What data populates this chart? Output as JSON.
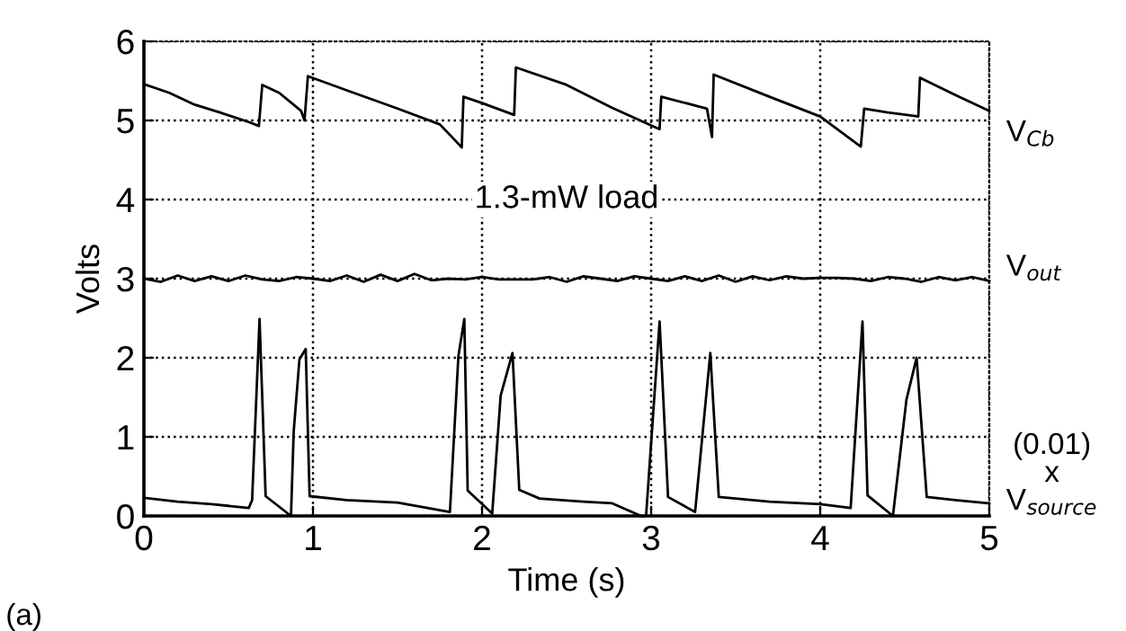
{
  "chart_data": {
    "type": "line",
    "xlabel": "Time (s)",
    "ylabel": "Volts",
    "xlim": [
      0,
      5
    ],
    "ylim": [
      0,
      6
    ],
    "xticks": [
      0,
      1,
      2,
      3,
      4,
      5
    ],
    "yticks": [
      0,
      1,
      2,
      3,
      4,
      5,
      6
    ],
    "grid": true,
    "marker": "none",
    "line_style": "solid",
    "annotations": [
      "1.3-mW load",
      "(a)"
    ],
    "series": [
      {
        "name": "V$_{Cb}$",
        "color": "#000000",
        "x": [
          0,
          0.15,
          0.3,
          0.45,
          0.62,
          0.68,
          0.7,
          0.8,
          0.93,
          0.95,
          0.97,
          1.2,
          1.5,
          1.75,
          1.88,
          1.89,
          2.0,
          2.19,
          2.2,
          2.5,
          2.77,
          3.05,
          3.06,
          3.33,
          3.36,
          3.37,
          3.7,
          4.0,
          4.24,
          4.26,
          4.4,
          4.58,
          4.59,
          4.8,
          5.0
        ],
        "values": [
          5.46,
          5.35,
          5.2,
          5.1,
          4.98,
          4.93,
          5.45,
          5.35,
          5.12,
          5.0,
          5.56,
          5.38,
          5.15,
          4.95,
          4.66,
          5.3,
          5.22,
          5.07,
          5.67,
          5.45,
          5.16,
          4.89,
          5.3,
          5.15,
          4.79,
          5.58,
          5.3,
          5.05,
          4.67,
          5.15,
          5.1,
          5.05,
          5.54,
          5.32,
          5.12
        ]
      },
      {
        "name": "V$_{out}$",
        "color": "#000000",
        "x": [
          0,
          0.1,
          0.2,
          0.3,
          0.4,
          0.5,
          0.6,
          0.7,
          0.8,
          0.9,
          1.0,
          1.1,
          1.2,
          1.3,
          1.4,
          1.5,
          1.6,
          1.7,
          1.8,
          1.9,
          2.0,
          2.1,
          2.2,
          2.3,
          2.4,
          2.5,
          2.6,
          2.7,
          2.8,
          2.9,
          3.0,
          3.1,
          3.2,
          3.3,
          3.4,
          3.5,
          3.6,
          3.7,
          3.8,
          3.9,
          4.0,
          4.1,
          4.2,
          4.3,
          4.4,
          4.5,
          4.6,
          4.7,
          4.8,
          4.9,
          5.0
        ],
        "values": [
          3.0,
          2.96,
          3.04,
          2.97,
          3.03,
          2.97,
          3.04,
          2.99,
          2.97,
          3.02,
          3.0,
          2.97,
          3.04,
          2.96,
          3.05,
          2.97,
          3.06,
          2.98,
          3.0,
          2.99,
          3.02,
          2.99,
          2.99,
          2.99,
          3.02,
          2.96,
          3.03,
          3.0,
          2.97,
          3.03,
          3.0,
          2.97,
          3.03,
          2.97,
          3.04,
          2.96,
          3.03,
          2.98,
          3.03,
          3.0,
          3.01,
          3.01,
          3.0,
          2.97,
          3.02,
          3.0,
          2.96,
          3.02,
          2.98,
          3.02,
          2.97
        ]
      },
      {
        "name": "(0.01)\nx\nV$_{source}$",
        "color": "#000000",
        "x": [
          0,
          0.2,
          0.4,
          0.62,
          0.64,
          0.684,
          0.72,
          0.87,
          0.886,
          0.92,
          0.957,
          0.98,
          1.2,
          1.5,
          1.81,
          1.86,
          1.895,
          1.915,
          2.06,
          2.11,
          2.18,
          2.22,
          2.34,
          2.6,
          2.77,
          2.94,
          2.97,
          3.05,
          3.1,
          3.26,
          3.35,
          3.4,
          3.7,
          4.0,
          4.18,
          4.25,
          4.28,
          4.43,
          4.51,
          4.57,
          4.63,
          4.8,
          5.0
        ],
        "values": [
          0.23,
          0.18,
          0.15,
          0.1,
          0.2,
          2.49,
          0.25,
          0.0,
          1.07,
          1.98,
          2.11,
          0.25,
          0.2,
          0.17,
          0.05,
          2.02,
          2.49,
          0.32,
          0.03,
          1.52,
          2.06,
          0.33,
          0.22,
          0.18,
          0.16,
          0.0,
          0.0,
          2.46,
          0.24,
          0.05,
          2.06,
          0.24,
          0.18,
          0.15,
          0.1,
          2.46,
          0.26,
          0.0,
          1.47,
          2.0,
          0.24,
          0.2,
          0.16
        ]
      }
    ]
  }
}
